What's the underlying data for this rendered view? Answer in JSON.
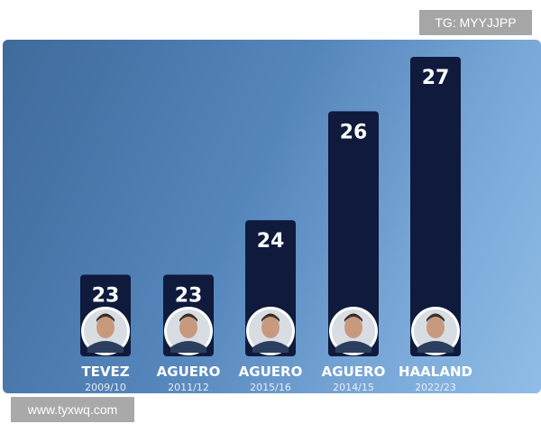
{
  "watermark_top": "TG: MYYJJPP",
  "watermark_bottom": "www.tyxwq.com",
  "chart_data": {
    "type": "bar",
    "title": "",
    "xlabel": "",
    "ylabel": "",
    "ylim": [
      0,
      27
    ],
    "grid": false,
    "colors": {
      "bar": "#0f1a3c",
      "background": "#5586bb",
      "text": "#ffffff"
    },
    "categories": [
      "TEVEZ",
      "AGUERO",
      "AGUERO",
      "AGUERO",
      "HAALAND"
    ],
    "seasons": [
      "2009/10",
      "2011/12",
      "2015/16",
      "2014/15",
      "2022/23"
    ],
    "values": [
      23,
      23,
      24,
      26,
      27
    ],
    "value_labels": [
      "23",
      "23",
      "24",
      "26",
      "27"
    ],
    "avatars": [
      "player-photo-icon",
      "player-photo-icon",
      "player-photo-icon",
      "player-photo-icon",
      "player-photo-icon"
    ]
  }
}
